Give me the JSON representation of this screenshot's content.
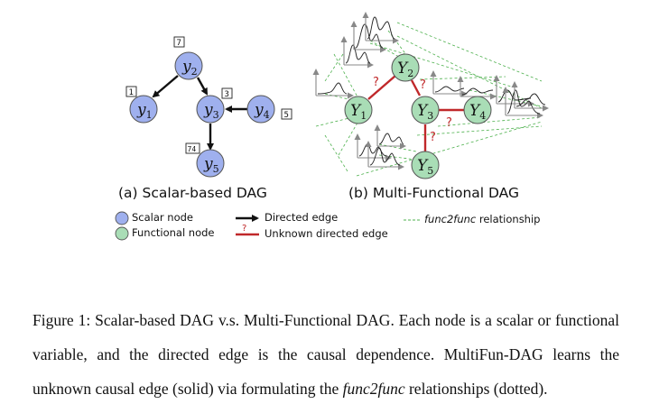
{
  "figure": {
    "panel_a": {
      "caption": "(a) Scalar-based DAG",
      "nodes": [
        {
          "id": "y2",
          "base": "y",
          "sub": "2",
          "box": "7"
        },
        {
          "id": "y1",
          "base": "y",
          "sub": "1",
          "box": "1"
        },
        {
          "id": "y3",
          "base": "y",
          "sub": "3",
          "box": "3"
        },
        {
          "id": "y4",
          "base": "y",
          "sub": "4",
          "box": "5"
        },
        {
          "id": "y5",
          "base": "y",
          "sub": "5",
          "box": "74"
        }
      ],
      "edges": [
        [
          "y2",
          "y1"
        ],
        [
          "y2",
          "y3"
        ],
        [
          "y4",
          "y3"
        ],
        [
          "y3",
          "y5"
        ]
      ]
    },
    "panel_b": {
      "caption": "(b) Multi-Functional DAG",
      "nodes": [
        {
          "id": "Y1",
          "base": "Y",
          "sub": "1"
        },
        {
          "id": "Y2",
          "base": "Y",
          "sub": "2"
        },
        {
          "id": "Y3",
          "base": "Y",
          "sub": "3"
        },
        {
          "id": "Y4",
          "base": "Y",
          "sub": "4"
        },
        {
          "id": "Y5",
          "base": "Y",
          "sub": "5"
        }
      ],
      "unknown_edge_mark": "?"
    },
    "legend": {
      "scalar_node": "Scalar node",
      "functional_node": "Functional node",
      "directed_edge": "Directed edge",
      "unknown_edge": "Unknown directed edge",
      "unknown_mark": "?",
      "func2func": "func2func",
      "relationship": " relationship"
    },
    "colors": {
      "scalar_fill": "#9fb0ee",
      "functional_fill": "#a9ddb6",
      "node_stroke": "#555555",
      "unknown_edge": "#c0282a",
      "func2func_line": "#4cb04c"
    }
  },
  "caption": {
    "label": "Figure 1:",
    "part1": " Scalar-based DAG v.s. Multi-Functional DAG. Each node is a scalar or functional variable, and the directed edge is the causal dependence. MultiFun-DAG learns the unknown causal edge (solid) via formulating the ",
    "em": "func2func",
    "part2": " relationships (dotted)."
  }
}
